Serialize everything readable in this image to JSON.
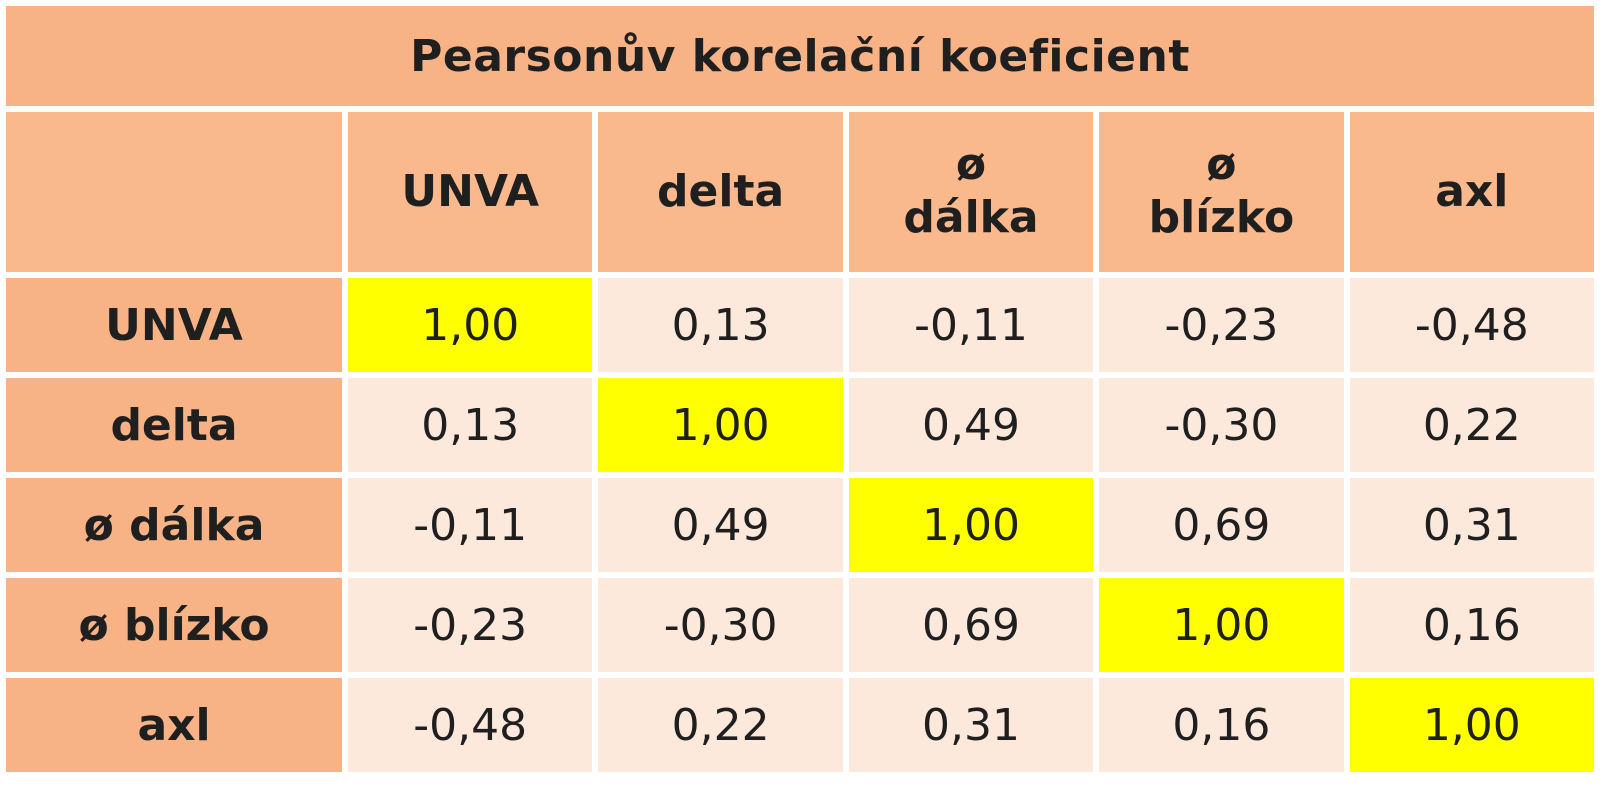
{
  "chart_data": {
    "type": "table",
    "title": "Pearsonův korelační koeficient",
    "columns": [
      "UNVA",
      "delta",
      "ø dálka",
      "ø blízko",
      "axl"
    ],
    "column_header_lines": [
      [
        "UNVA"
      ],
      [
        "delta"
      ],
      [
        "ø",
        "dálka"
      ],
      [
        "ø",
        "blízko"
      ],
      [
        "axl"
      ]
    ],
    "rows": [
      {
        "label": "UNVA",
        "values": [
          "1,00",
          "0,13",
          "-0,11",
          "-0,23",
          "-0,48"
        ]
      },
      {
        "label": "delta",
        "values": [
          "0,13",
          "1,00",
          "0,49",
          "-0,30",
          "0,22"
        ]
      },
      {
        "label": "ø dálka",
        "values": [
          "-0,11",
          "0,49",
          "1,00",
          "0,69",
          "0,31"
        ]
      },
      {
        "label": "ø blízko",
        "values": [
          "-0,23",
          "-0,30",
          "0,69",
          "1,00",
          "0,16"
        ]
      },
      {
        "label": "axl",
        "values": [
          "-0,48",
          "0,22",
          "0,31",
          "0,16",
          "1,00"
        ]
      }
    ],
    "highlight_color": "#ffff00",
    "header_color": "#f7b385",
    "cell_color": "#fde9dc"
  }
}
